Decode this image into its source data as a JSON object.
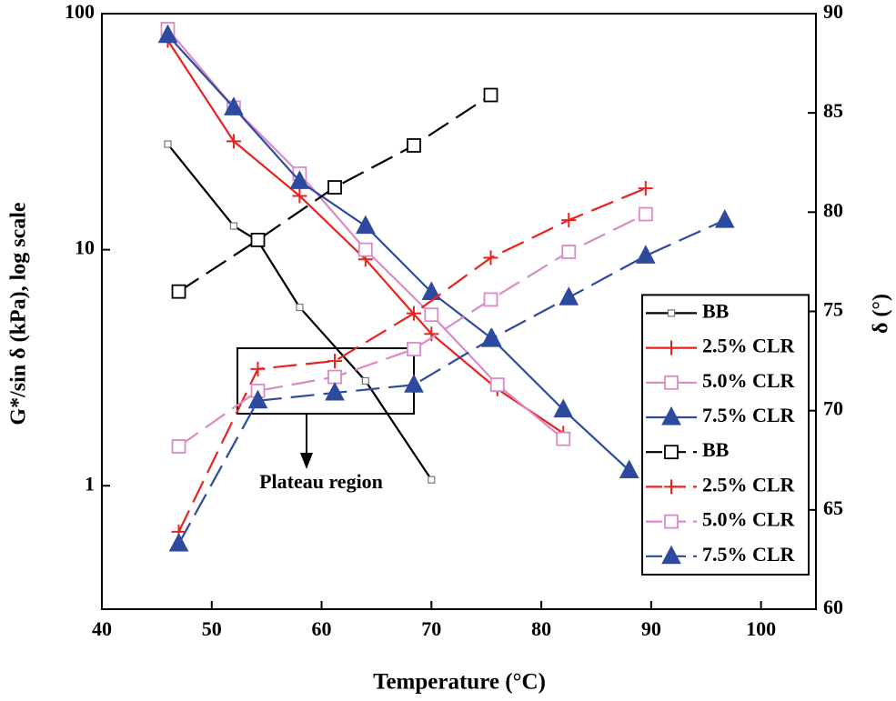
{
  "chart_data": {
    "type": "line",
    "xlabel": "Temperature (°C)",
    "ylabel": "G*/sin δ (kPa), log scale",
    "y2label": "δ (°)",
    "xlim": [
      40,
      105
    ],
    "xticks": [
      40,
      50,
      60,
      70,
      80,
      90,
      100
    ],
    "ylim": [
      0.3,
      100
    ],
    "yticks": [
      1,
      10,
      100
    ],
    "yscale": "log",
    "y2lim": [
      60,
      90
    ],
    "y2ticks": [
      60,
      65,
      70,
      75,
      80,
      85,
      90
    ],
    "legend": "center right",
    "annotation": "Plateau region",
    "series": [
      {
        "name": "BB",
        "color": "#000000",
        "linestyle": "solid",
        "marker": "small-square",
        "x": [
          46,
          52,
          54.2,
          58,
          64,
          70
        ],
        "values": [
          28,
          12.6,
          10.9,
          5.7,
          2.78,
          1.06
        ]
      },
      {
        "name": "2.5% CLR",
        "color": "#e8231e",
        "linestyle": "solid",
        "marker": "plus",
        "x": [
          46,
          52,
          58,
          64,
          70,
          76,
          82
        ],
        "values": [
          77,
          28.8,
          16.9,
          9.1,
          4.4,
          2.57,
          1.67
        ]
      },
      {
        "name": "5.0% CLR",
        "color": "#d98bc9",
        "linestyle": "solid",
        "marker": "square",
        "x": [
          46,
          52,
          58,
          64,
          70,
          76,
          82
        ],
        "values": [
          86,
          40,
          21,
          10,
          5.3,
          2.68,
          1.58
        ]
      },
      {
        "name": "7.5% CLR",
        "color": "#2e4a9e",
        "linestyle": "solid",
        "marker": "triangle",
        "x": [
          46,
          52,
          58,
          64,
          70,
          75.5,
          82,
          88
        ],
        "values": [
          81,
          40,
          19.5,
          12.6,
          6.6,
          4.2,
          2.1,
          1.16
        ]
      },
      {
        "name": "BB",
        "color": "#000000",
        "linestyle": "dashed",
        "marker": "square",
        "axis": "y2",
        "x": [
          47,
          54.2,
          61.2,
          68.4,
          75.4
        ],
        "values": [
          76.0,
          78.6,
          81.25,
          83.36,
          85.9
        ]
      },
      {
        "name": "2.5% CLR",
        "color": "#e8231e",
        "linestyle": "dashed",
        "marker": "plus",
        "axis": "y2",
        "x": [
          47,
          54.2,
          61.2,
          68.4,
          75.4,
          82.5,
          89.5
        ],
        "values": [
          63.9,
          72.1,
          72.5,
          74.9,
          77.7,
          79.6,
          81.2
        ]
      },
      {
        "name": "5.0% CLR",
        "color": "#d98bc9",
        "linestyle": "dashed",
        "marker": "square",
        "axis": "y2",
        "x": [
          47,
          54.2,
          61.2,
          68.4,
          75.4,
          82.5,
          89.5
        ],
        "values": [
          68.2,
          71.0,
          71.7,
          73.1,
          75.6,
          78.0,
          79.9
        ]
      },
      {
        "name": "7.5% CLR",
        "color": "#2e4a9e",
        "linestyle": "dashed",
        "marker": "triangle",
        "axis": "y2",
        "x": [
          47,
          54.2,
          61.2,
          68.4,
          75.4,
          82.5,
          89.5,
          96.7
        ],
        "values": [
          63.3,
          70.5,
          70.9,
          71.3,
          73.6,
          75.7,
          77.8,
          79.6
        ]
      }
    ]
  }
}
